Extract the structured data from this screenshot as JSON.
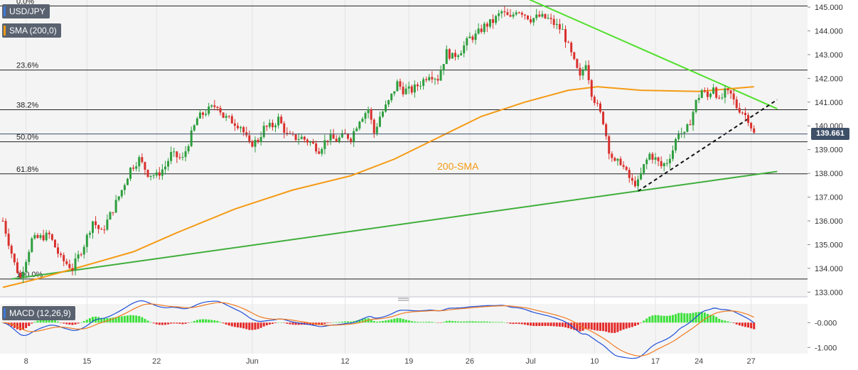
{
  "symbol": "USD/JPY",
  "sma_label": "SMA (200,0)",
  "macd_label": "MACD (12,26,9)",
  "sma_annotation": "200-SMA",
  "current_price": "139.661",
  "colors": {
    "bull": "#2e9e3e",
    "bear": "#d9302c",
    "sma": "#f59a14",
    "trend_down": "#4fe02a",
    "trend_support": "#3fae3a",
    "macd_line": "#1f4fd8",
    "signal_line": "#f07a20",
    "hist_pos": "#3ce03a",
    "hist_neg": "#e42a2a",
    "price_line": "#3e5068"
  },
  "chart_data": {
    "type": "line",
    "main": {
      "y_ticks": [
        "145.000",
        "144.000",
        "143.000",
        "142.000",
        "141.000",
        "140.000",
        "139.000",
        "138.000",
        "137.000",
        "136.000",
        "135.000",
        "134.000",
        "133.000"
      ],
      "ylim": [
        132.8,
        145.3
      ],
      "fibonacci": [
        {
          "label": "0.0%",
          "value": 145.05
        },
        {
          "label": "23.6%",
          "value": 142.35
        },
        {
          "label": "38.2%",
          "value": 140.68
        },
        {
          "label": "50.0%",
          "value": 139.33
        },
        {
          "label": "61.8%",
          "value": 137.98
        },
        {
          "label": "100.0%",
          "value": 133.55
        }
      ],
      "x_ticks": [
        {
          "label": "8",
          "i": 8
        },
        {
          "label": "15",
          "i": 29
        },
        {
          "label": "22",
          "i": 53
        },
        {
          "label": "Jun",
          "i": 86
        },
        {
          "label": "12",
          "i": 118
        },
        {
          "label": "19",
          "i": 140
        },
        {
          "label": "26",
          "i": 161
        },
        {
          "label": "Jul",
          "i": 182
        },
        {
          "label": "10",
          "i": 204
        },
        {
          "label": "17",
          "i": 225
        },
        {
          "label": "24",
          "i": 240
        },
        {
          "label": "27",
          "i": 258
        }
      ],
      "series": [
        {
          "name": "SMA (200,0)",
          "points": [
            [
              0,
              133.2
            ],
            [
              10,
              133.5
            ],
            [
              25,
              134.0
            ],
            [
              45,
              134.7
            ],
            [
              60,
              135.5
            ],
            [
              80,
              136.5
            ],
            [
              100,
              137.3
            ],
            [
              120,
              137.9
            ],
            [
              135,
              138.6
            ],
            [
              150,
              139.5
            ],
            [
              165,
              140.4
            ],
            [
              180,
              141.0
            ],
            [
              195,
              141.5
            ],
            [
              205,
              141.65
            ],
            [
              220,
              141.5
            ],
            [
              240,
              141.45
            ],
            [
              259,
              141.65
            ]
          ]
        }
      ],
      "trendlines": [
        {
          "name": "resistance",
          "from": [
            181,
            145.35
          ],
          "to": [
            267,
            140.72
          ]
        },
        {
          "name": "support",
          "from": [
            3,
            133.55
          ],
          "to": [
            267,
            138.08
          ]
        },
        {
          "name": "rising support",
          "from": [
            219,
            137.25
          ],
          "to": [
            267,
            141.1
          ]
        }
      ],
      "close_path": [
        [
          0,
          136.0
        ],
        [
          4,
          134.2
        ],
        [
          6,
          133.6
        ],
        [
          10,
          135.2
        ],
        [
          16,
          135.4
        ],
        [
          20,
          134.4
        ],
        [
          24,
          134.0
        ],
        [
          28,
          135.0
        ],
        [
          31,
          136.0
        ],
        [
          34,
          135.5
        ],
        [
          38,
          136.5
        ],
        [
          41,
          137.3
        ],
        [
          44,
          138.2
        ],
        [
          47,
          138.6
        ],
        [
          50,
          138.0
        ],
        [
          53,
          137.9
        ],
        [
          56,
          138.3
        ],
        [
          58,
          138.8
        ],
        [
          62,
          138.6
        ],
        [
          64,
          139.3
        ],
        [
          67,
          140.3
        ],
        [
          70,
          140.6
        ],
        [
          74,
          140.9
        ],
        [
          76,
          140.4
        ],
        [
          79,
          140.2
        ],
        [
          82,
          140.0
        ],
        [
          85,
          139.2
        ],
        [
          88,
          139.4
        ],
        [
          90,
          139.9
        ],
        [
          93,
          140.0
        ],
        [
          95,
          140.3
        ],
        [
          98,
          139.6
        ],
        [
          100,
          139.5
        ],
        [
          103,
          139.5
        ],
        [
          106,
          139.3
        ],
        [
          109,
          139.0
        ],
        [
          112,
          139.5
        ],
        [
          115,
          139.4
        ],
        [
          118,
          139.6
        ],
        [
          120,
          139.5
        ],
        [
          123,
          140.3
        ],
        [
          126,
          140.7
        ],
        [
          128,
          139.7
        ],
        [
          130,
          140.4
        ],
        [
          133,
          141.0
        ],
        [
          136,
          141.8
        ],
        [
          138,
          141.5
        ],
        [
          141,
          141.5
        ],
        [
          144,
          141.8
        ],
        [
          147,
          142.2
        ],
        [
          150,
          142.0
        ],
        [
          153,
          143.1
        ],
        [
          155,
          142.9
        ],
        [
          158,
          143.2
        ],
        [
          161,
          143.7
        ],
        [
          163,
          143.8
        ],
        [
          166,
          144.2
        ],
        [
          169,
          144.4
        ],
        [
          172,
          144.8
        ],
        [
          175,
          144.5
        ],
        [
          177,
          144.9
        ],
        [
          179,
          144.8
        ],
        [
          182,
          144.5
        ],
        [
          185,
          144.6
        ],
        [
          188,
          144.5
        ],
        [
          190,
          144.3
        ],
        [
          193,
          144.0
        ],
        [
          196,
          143.0
        ],
        [
          199,
          142.0
        ],
        [
          201,
          142.7
        ],
        [
          203,
          141.4
        ],
        [
          205,
          140.8
        ],
        [
          207,
          140.2
        ],
        [
          209,
          139.0
        ],
        [
          211,
          138.4
        ],
        [
          213,
          138.5
        ],
        [
          215,
          138.0
        ],
        [
          217,
          137.6
        ],
        [
          219,
          137.6
        ],
        [
          221,
          138.3
        ],
        [
          223,
          138.8
        ],
        [
          225,
          138.6
        ],
        [
          227,
          138.3
        ],
        [
          229,
          138.5
        ],
        [
          231,
          139.0
        ],
        [
          233,
          139.8
        ],
        [
          235,
          139.6
        ],
        [
          237,
          140.2
        ],
        [
          239,
          141.0
        ],
        [
          241,
          141.5
        ],
        [
          243,
          141.2
        ],
        [
          245,
          141.7
        ],
        [
          247,
          141.0
        ],
        [
          249,
          141.4
        ],
        [
          251,
          141.3
        ],
        [
          253,
          140.8
        ],
        [
          255,
          140.6
        ],
        [
          257,
          140.3
        ],
        [
          259,
          139.66
        ]
      ]
    },
    "macd": {
      "y_ticks": [
        "-0.000",
        "-1.000"
      ],
      "ylim": [
        -1.25,
        0.75
      ]
    }
  }
}
